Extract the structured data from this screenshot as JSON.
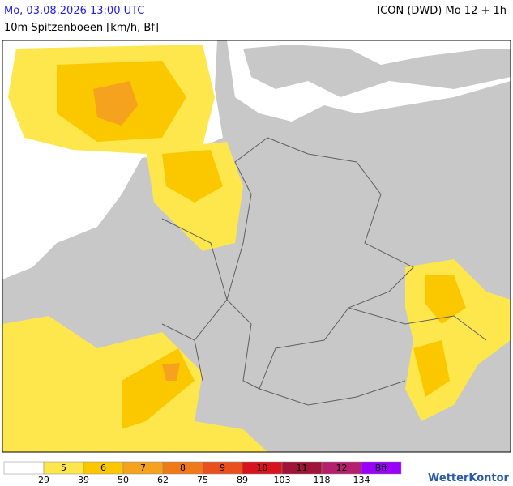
{
  "header": {
    "datetime": "Mo, 03.08.2026 13:00 UTC",
    "model": "ICON (DWD) Mo 12 + 1h",
    "subtitle": "10m Spitzenboeen [km/h, Bf]"
  },
  "legend": {
    "classes": [
      {
        "label": null,
        "color": "#ffffff"
      },
      {
        "label": "5",
        "color": "#fde74c"
      },
      {
        "label": "6",
        "color": "#fbc800"
      },
      {
        "label": "7",
        "color": "#f5a21e"
      },
      {
        "label": "8",
        "color": "#f07a1a"
      },
      {
        "label": "9",
        "color": "#e8501e"
      },
      {
        "label": "10",
        "color": "#d7141e"
      },
      {
        "label": "11",
        "color": "#a01438"
      },
      {
        "label": "12",
        "color": "#b4206e"
      },
      {
        "label": "Bft",
        "color": "#9b00ff"
      }
    ],
    "thresholds": [
      29,
      39,
      50,
      62,
      75,
      89,
      103,
      118,
      134
    ]
  },
  "logo": "WetterKontor"
}
